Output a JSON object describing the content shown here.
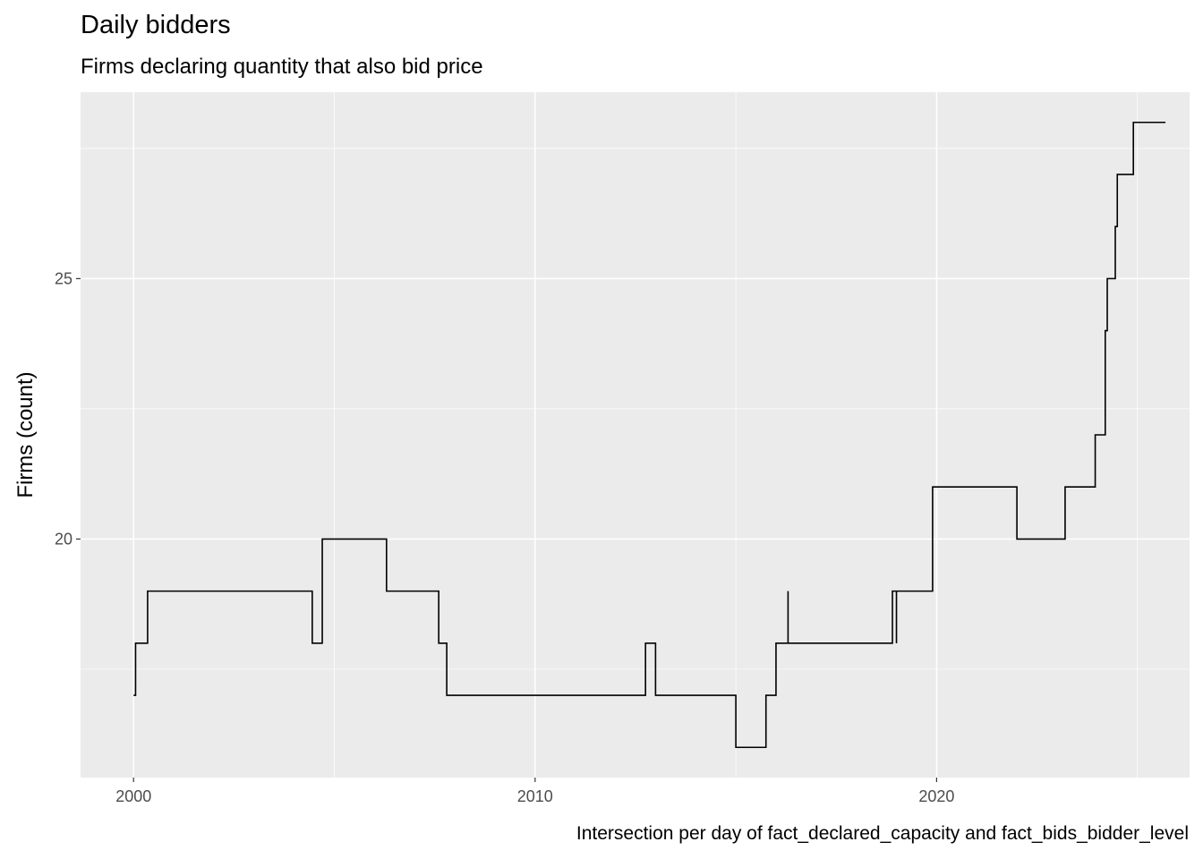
{
  "chart_data": {
    "type": "line",
    "step": true,
    "title": "Daily bidders",
    "subtitle": "Firms declaring quantity that also bid price",
    "xlabel": "",
    "ylabel": "Firms (count)",
    "caption": "Intersection per day of fact_declared_capacity and fact_bids_bidder_level",
    "x_ticks": [
      2000,
      2010,
      2020
    ],
    "y_ticks": [
      20,
      25
    ],
    "xlim": [
      1998.68,
      2026.3
    ],
    "ylim": [
      15.42,
      28.58
    ],
    "grid": true,
    "legend": "none",
    "colors": {
      "panel": "#ebebeb",
      "grid": "#ffffff",
      "line": "#000000"
    },
    "series": [
      {
        "x": [
          2000.0,
          2000.05,
          2000.05,
          2000.35,
          2000.35,
          2004.45,
          2004.45,
          2004.7,
          2004.7,
          2006.3,
          2006.3,
          2007.6,
          2007.6,
          2007.8,
          2007.8,
          2012.75,
          2012.75,
          2013.0,
          2013.0,
          2015.0,
          2015.0,
          2015.75,
          2015.75,
          2016.0,
          2016.0,
          2016.3,
          2016.3,
          2016.3,
          2016.3,
          2018.9,
          2018.9,
          2019.0,
          2019.0,
          2019.0,
          2019.0,
          2019.9,
          2019.9,
          2022.0,
          2022.0,
          2023.2,
          2023.2,
          2023.95,
          2023.95,
          2024.2,
          2024.2,
          2024.25,
          2024.25,
          2024.45,
          2024.45,
          2024.5,
          2024.5,
          2024.9,
          2024.9,
          2024.95,
          2024.95,
          2025.7
        ],
        "y": [
          17,
          17,
          18,
          18,
          19,
          19,
          18,
          18,
          20,
          20,
          19,
          19,
          18,
          18,
          17,
          17,
          18,
          18,
          17,
          17,
          16,
          16,
          17,
          17,
          18,
          18,
          19,
          18,
          18,
          18,
          19,
          19,
          18,
          19,
          19,
          19,
          21,
          21,
          20,
          20,
          21,
          21,
          22,
          22,
          24,
          24,
          25,
          25,
          26,
          26,
          27,
          27,
          28,
          28,
          28,
          28
        ]
      }
    ]
  }
}
